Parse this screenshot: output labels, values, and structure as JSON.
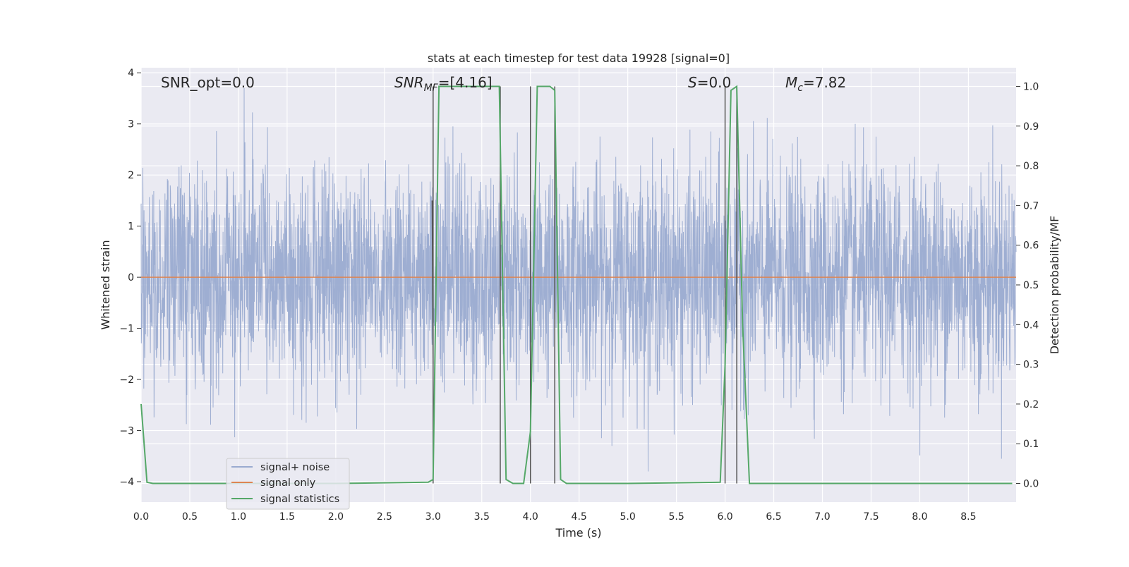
{
  "chart_data": {
    "type": "line",
    "title": "stats at each timestep for test data 19928 [signal=0]",
    "xlabel": "Time (s)",
    "ylabel": "Whitened strain",
    "y2label": "Detection probability/MF",
    "xlim": [
      0.0,
      8.99
    ],
    "ylim": [
      -4.4,
      4.1
    ],
    "y2lim": [
      -0.047,
      1.047
    ],
    "x_ticks": [
      "0.0",
      "0.5",
      "1.0",
      "1.5",
      "2.0",
      "2.5",
      "3.0",
      "3.5",
      "4.0",
      "4.5",
      "5.0",
      "5.5",
      "6.0",
      "6.5",
      "7.0",
      "7.5",
      "8.0",
      "8.5"
    ],
    "y_ticks": [
      "4",
      "3",
      "2",
      "1",
      "0",
      "−1",
      "−2",
      "−3",
      "−4"
    ],
    "y2_ticks": [
      "1.0",
      "0.9",
      "0.8",
      "0.7",
      "0.6",
      "0.5",
      "0.4",
      "0.3",
      "0.2",
      "0.1",
      "0.0"
    ],
    "grid": true,
    "legend_position": "lower-left",
    "annotations": {
      "snr_opt": "SNR_opt=0.0",
      "snr_mf_symbol": "SNR",
      "snr_mf_sub": "MF",
      "snr_mf_value": "=[4.16]",
      "s_symbol": "S",
      "s_value": "=0.0",
      "mc_symbol": "M",
      "mc_sub": "c",
      "mc_value": "=7.82"
    },
    "series": [
      {
        "name": "signal+ noise",
        "color": "#9aabd0",
        "style": "dense noise trace, amplitude approx. within [-3.8, 3.7], sampled on the full time range"
      },
      {
        "name": "signal only",
        "color": "#dd8452",
        "x": [
          0.0,
          8.99
        ],
        "y": [
          0.0,
          0.0
        ]
      },
      {
        "name": "signal statistics",
        "color": "#55a868",
        "axis": "right",
        "x": [
          0.0,
          0.06,
          0.12,
          0.3,
          1.0,
          2.0,
          2.95,
          3.0,
          3.06,
          3.15,
          3.6,
          3.68,
          3.75,
          3.82,
          3.93,
          4.0,
          4.07,
          4.13,
          4.2,
          4.25,
          4.31,
          4.37,
          5.0,
          5.95,
          6.0,
          6.06,
          6.12,
          6.18,
          6.25,
          7.0,
          8.95
        ],
        "y": [
          0.2,
          0.003,
          0.0,
          0.0,
          0.0,
          0.0,
          0.003,
          0.01,
          1.0,
          1.0,
          1.0,
          1.0,
          0.01,
          0.0,
          0.0,
          0.13,
          1.0,
          1.0,
          1.0,
          0.99,
          0.01,
          0.0,
          0.0,
          0.003,
          0.3,
          0.99,
          1.0,
          0.4,
          0.0,
          0.0,
          0.0
        ]
      }
    ],
    "vertical_markers": {
      "color": "#555555",
      "x": [
        3.0,
        3.69,
        4.0,
        4.25,
        6.0,
        6.12
      ],
      "y2_top": 1.0
    },
    "gray_segment": {
      "x": [
        2.99,
        3.0
      ],
      "y": [
        1.5,
        -1.7
      ]
    }
  }
}
